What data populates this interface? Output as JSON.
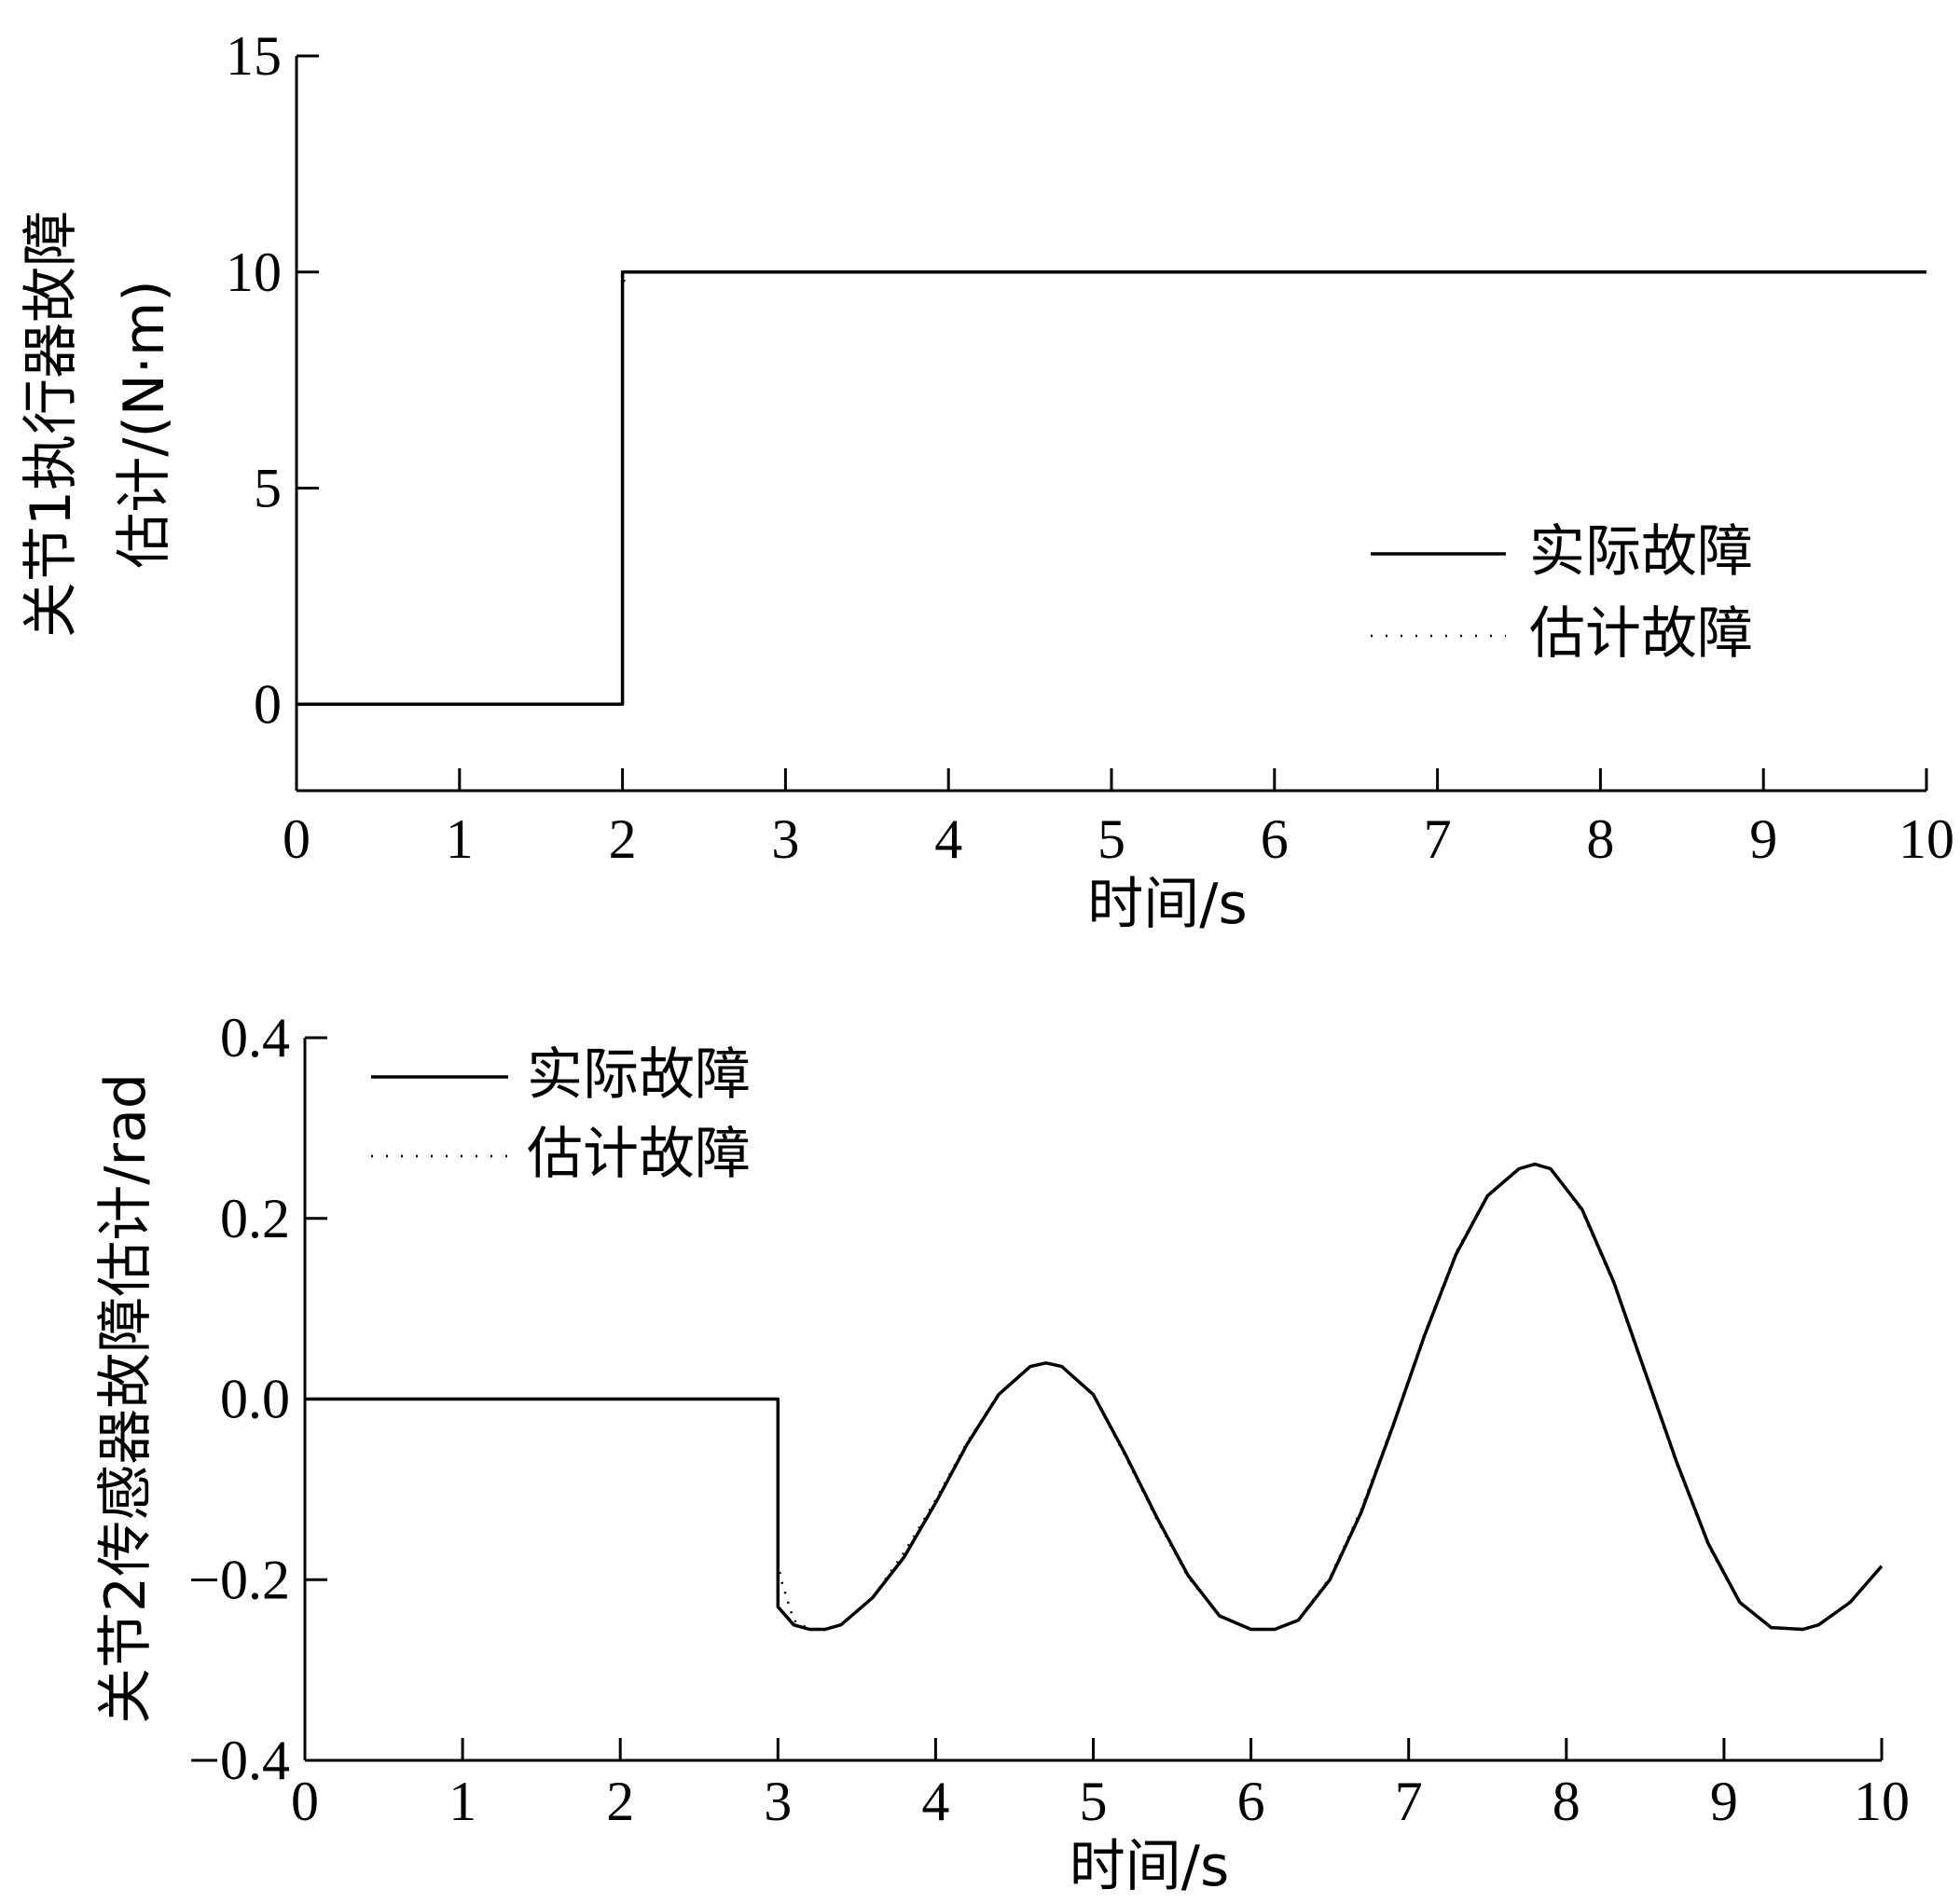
{
  "chart_data": [
    {
      "type": "line",
      "xlabel": "时间/s",
      "ylabel": [
        "关节1执行器故障",
        "估计/(N·m)"
      ],
      "xlim": [
        0,
        10
      ],
      "ylim": [
        -2,
        15
      ],
      "xticks": [
        0,
        1,
        2,
        3,
        4,
        5,
        6,
        7,
        8,
        9,
        10
      ],
      "yticks": [
        0,
        5,
        10,
        15
      ],
      "ytick_labels": [
        "0",
        "5",
        "10",
        "15"
      ],
      "legend_position": "right",
      "series": [
        {
          "name": "实际故障",
          "style": "solid",
          "x": [
            0,
            2,
            2,
            10
          ],
          "y": [
            0,
            0,
            10,
            10
          ]
        },
        {
          "name": "估计故障",
          "style": "dotted",
          "x": [
            0,
            2,
            2,
            2.02,
            10
          ],
          "y": [
            0,
            0,
            9.6,
            10,
            10
          ]
        }
      ]
    },
    {
      "type": "line",
      "xlabel": "时间/s",
      "ylabel": "关节2传感器故障估计/rad",
      "xlim": [
        0,
        10
      ],
      "ylim": [
        -0.4,
        0.4
      ],
      "xticks": [
        0,
        1,
        2,
        3,
        4,
        5,
        6,
        7,
        8,
        9,
        10
      ],
      "yticks": [
        -0.4,
        -0.2,
        0.0,
        0.2,
        0.4
      ],
      "ytick_labels": [
        "−0.4",
        "−0.2",
        "0.0",
        "0.2",
        "0.4"
      ],
      "legend_position": "top-left",
      "series": [
        {
          "name": "实际故障",
          "style": "solid",
          "x": [
            0,
            3,
            3,
            3.1,
            3.2,
            3.3,
            3.4,
            3.6,
            3.8,
            4.0,
            4.2,
            4.4,
            4.6,
            4.7,
            4.8,
            5.0,
            5.2,
            5.4,
            5.6,
            5.8,
            6.0,
            6.15,
            6.3,
            6.5,
            6.7,
            6.9,
            7.1,
            7.3,
            7.5,
            7.7,
            7.8,
            7.9,
            8.1,
            8.3,
            8.5,
            8.7,
            8.9,
            9.1,
            9.3,
            9.5,
            9.6,
            9.8,
            10.0
          ],
          "y": [
            0,
            0,
            -0.23,
            -0.25,
            -0.255,
            -0.255,
            -0.25,
            -0.22,
            -0.175,
            -0.115,
            -0.05,
            0.005,
            0.036,
            0.04,
            0.036,
            0.005,
            -0.06,
            -0.13,
            -0.195,
            -0.24,
            -0.255,
            -0.255,
            -0.245,
            -0.2,
            -0.125,
            -0.03,
            0.07,
            0.16,
            0.225,
            0.255,
            0.26,
            0.255,
            0.21,
            0.13,
            0.03,
            -0.07,
            -0.16,
            -0.225,
            -0.253,
            -0.255,
            -0.25,
            -0.225,
            -0.185
          ]
        },
        {
          "name": "估计故障",
          "style": "dotted",
          "x": [
            0,
            3,
            3,
            3.02,
            3.1,
            3.2,
            3.3,
            3.4,
            3.6,
            3.8,
            4.0,
            4.2,
            4.4,
            4.6,
            4.7,
            4.8,
            5.0,
            5.2,
            5.4,
            5.6,
            5.8,
            6.0,
            6.15,
            6.3,
            6.5,
            6.7,
            6.9,
            7.1,
            7.3,
            7.5,
            7.7,
            7.8,
            7.9,
            8.1,
            8.3,
            8.5,
            8.7,
            8.9,
            9.1,
            9.3,
            9.5,
            9.6,
            9.8,
            10.0
          ],
          "y": [
            0,
            0,
            -0.18,
            -0.2,
            -0.245,
            -0.255,
            -0.255,
            -0.25,
            -0.22,
            -0.17,
            -0.112,
            -0.048,
            0.006,
            0.036,
            0.04,
            0.036,
            0.004,
            -0.062,
            -0.132,
            -0.197,
            -0.24,
            -0.255,
            -0.255,
            -0.244,
            -0.198,
            -0.122,
            -0.028,
            0.072,
            0.162,
            0.226,
            0.255,
            0.26,
            0.255,
            0.208,
            0.128,
            0.028,
            -0.072,
            -0.162,
            -0.226,
            -0.253,
            -0.255,
            -0.25,
            -0.224,
            -0.185
          ]
        }
      ]
    }
  ]
}
